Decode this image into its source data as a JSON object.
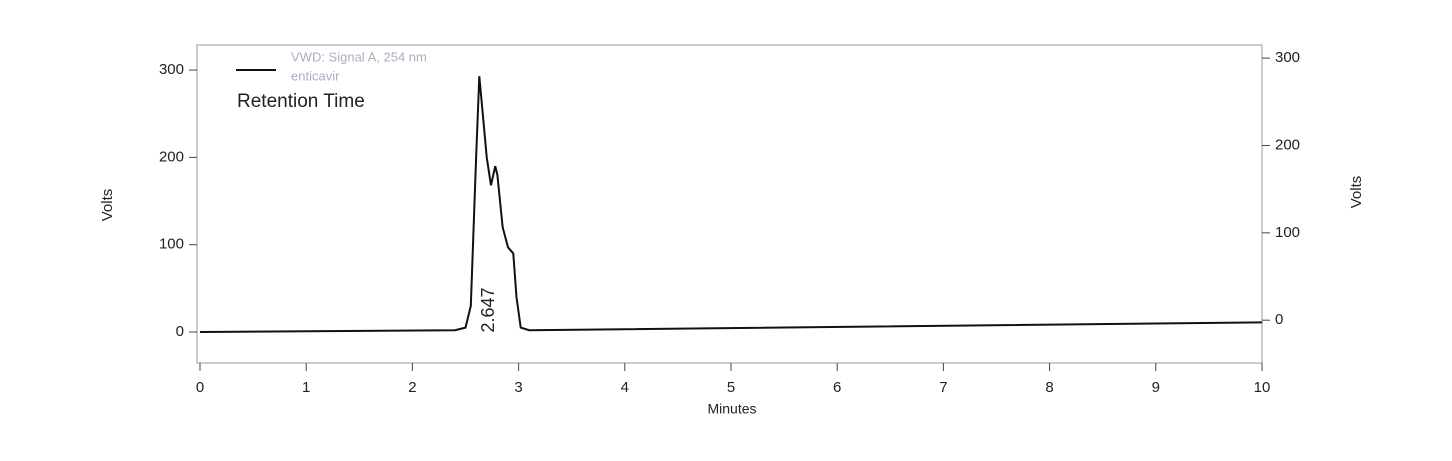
{
  "chart_data": {
    "type": "line",
    "x_label": "Minutes",
    "y_label": "Volts",
    "y2_label": "Volts",
    "x": [
      0,
      2.4,
      2.5,
      2.55,
      2.6,
      2.63,
      2.67,
      2.7,
      2.74,
      2.78,
      2.8,
      2.85,
      2.9,
      2.95,
      2.98,
      3.02,
      3.1,
      10
    ],
    "series": [
      {
        "name": "VWD: Signal A, 254 nm",
        "subname": "enticavir",
        "color": "#111111",
        "values": [
          0,
          2,
          5,
          30,
          200,
          293,
          240,
          200,
          168,
          190,
          180,
          120,
          97,
          90,
          40,
          5,
          2,
          11
        ]
      }
    ],
    "legend_text": "Retention Time",
    "annotations": [
      {
        "text": "2.647",
        "x": 2.647
      }
    ],
    "xlim": [
      0,
      10
    ],
    "xticks": [
      0,
      1,
      2,
      3,
      4,
      5,
      6,
      7,
      8,
      9,
      10
    ],
    "ylim": [
      -35.5,
      328.7
    ],
    "yticks": [
      0,
      100,
      200,
      300
    ],
    "y2lim": [
      -49,
      315
    ],
    "y2ticks": [
      0,
      100,
      200,
      300
    ]
  }
}
